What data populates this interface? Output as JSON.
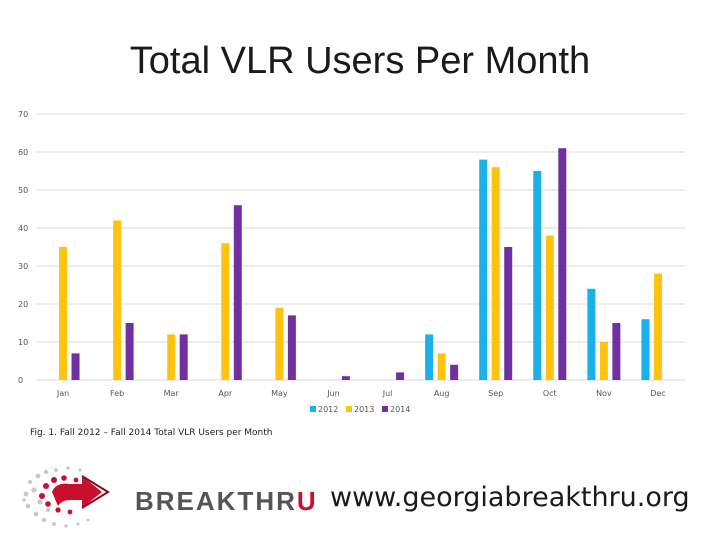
{
  "slide": {
    "title": "Total VLR Users Per Month",
    "caption": "Fig. 1. Fall 2012 – Fall 2014 Total VLR Users per Month",
    "brand_part1": "BREAKTHR",
    "brand_part2": "U",
    "website": "www.georgiabreakthru.org",
    "logo_icon": "breakthru-logo-icon"
  },
  "colors": {
    "s2012": "#1ab0e8",
    "s2013": "#ffc20e",
    "s2014": "#7030a0",
    "grid": "#d9d9d9",
    "brand_red": "#c8102e"
  },
  "chart_data": {
    "type": "bar",
    "title": "",
    "xlabel": "",
    "ylabel": "",
    "categories": [
      "Jan",
      "Feb",
      "Mar",
      "Apr",
      "May",
      "Jun",
      "Jul",
      "Aug",
      "Sep",
      "Oct",
      "Nov",
      "Dec"
    ],
    "ylim": [
      0,
      70
    ],
    "yticks": [
      0,
      10,
      20,
      30,
      40,
      50,
      60,
      70
    ],
    "grid": true,
    "legend_position": "bottom-center",
    "series": [
      {
        "name": "2012",
        "color": "#1ab0e8",
        "values": [
          0,
          0,
          0,
          0,
          0,
          0,
          0,
          12,
          58,
          55,
          24,
          16
        ]
      },
      {
        "name": "2013",
        "color": "#ffc20e",
        "values": [
          35,
          42,
          12,
          36,
          19,
          0,
          0,
          7,
          56,
          38,
          10,
          28
        ]
      },
      {
        "name": "2014",
        "color": "#7030a0",
        "values": [
          7,
          15,
          12,
          46,
          17,
          1,
          2,
          4,
          35,
          61,
          15,
          0
        ]
      }
    ]
  }
}
